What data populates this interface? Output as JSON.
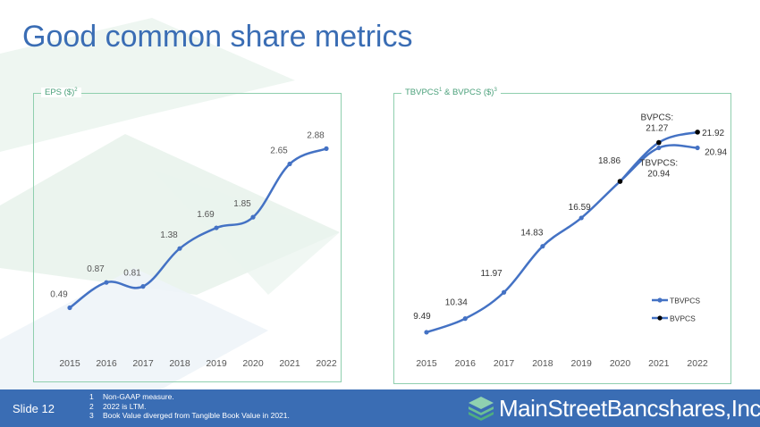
{
  "title": "Good common share metrics",
  "footer": {
    "slide": "Slide 12",
    "footnotes": [
      {
        "num": "1",
        "text": "Non-GAAP measure."
      },
      {
        "num": "2",
        "text": "2022 is LTM."
      },
      {
        "num": "3",
        "text": "Book Value diverged from Tangible Book Value in 2021."
      }
    ],
    "brand": "MainStreetBancshares,Inc."
  },
  "colors": {
    "title": "#3a6db4",
    "footer_bg": "#3a6db4",
    "series_line": "#4472c4",
    "bvpcs_marker": "#000000",
    "panel_border": "#8fcfae",
    "panel_label": "#4aa07a"
  },
  "chart_data": [
    {
      "type": "line",
      "title": "EPS ($)",
      "title_sup": "2",
      "categories": [
        "2015",
        "2016",
        "2017",
        "2018",
        "2019",
        "2020",
        "2021",
        "2022"
      ],
      "series": [
        {
          "values": [
            0.49,
            0.87,
            0.81,
            1.38,
            1.69,
            1.85,
            2.65,
            2.88
          ],
          "labels": [
            "0.49",
            "0.87",
            "0.81",
            "1.38",
            "1.69",
            "1.85",
            "2.65",
            "2.88"
          ]
        }
      ],
      "ylim": [
        0,
        3.1
      ],
      "grid": false,
      "legend": "none"
    },
    {
      "type": "line",
      "title": "TBVPCS",
      "title_sup": "1",
      "title_mid": " & BVPCS ($)",
      "title_sup2": "3",
      "categories": [
        "2015",
        "2016",
        "2017",
        "2018",
        "2019",
        "2020",
        "2021",
        "2022"
      ],
      "series": [
        {
          "name": "TBVPCS",
          "values": [
            9.49,
            10.34,
            11.97,
            14.83,
            16.59,
            18.86,
            20.94,
            20.94
          ],
          "labels": [
            "9.49",
            "10.34",
            "11.97",
            "14.83",
            "16.59",
            "18.86",
            "TBVPCS:\n20.94",
            "20.94"
          ]
        },
        {
          "name": "BVPCS",
          "values": [
            null,
            null,
            null,
            null,
            null,
            18.86,
            21.27,
            21.92
          ],
          "labels": [
            "",
            "",
            "",
            "",
            "",
            "",
            "BVPCS:\n21.27",
            "21.92"
          ]
        }
      ],
      "ylim": [
        8.6,
        22.8
      ],
      "grid": false,
      "legend": "right"
    }
  ]
}
